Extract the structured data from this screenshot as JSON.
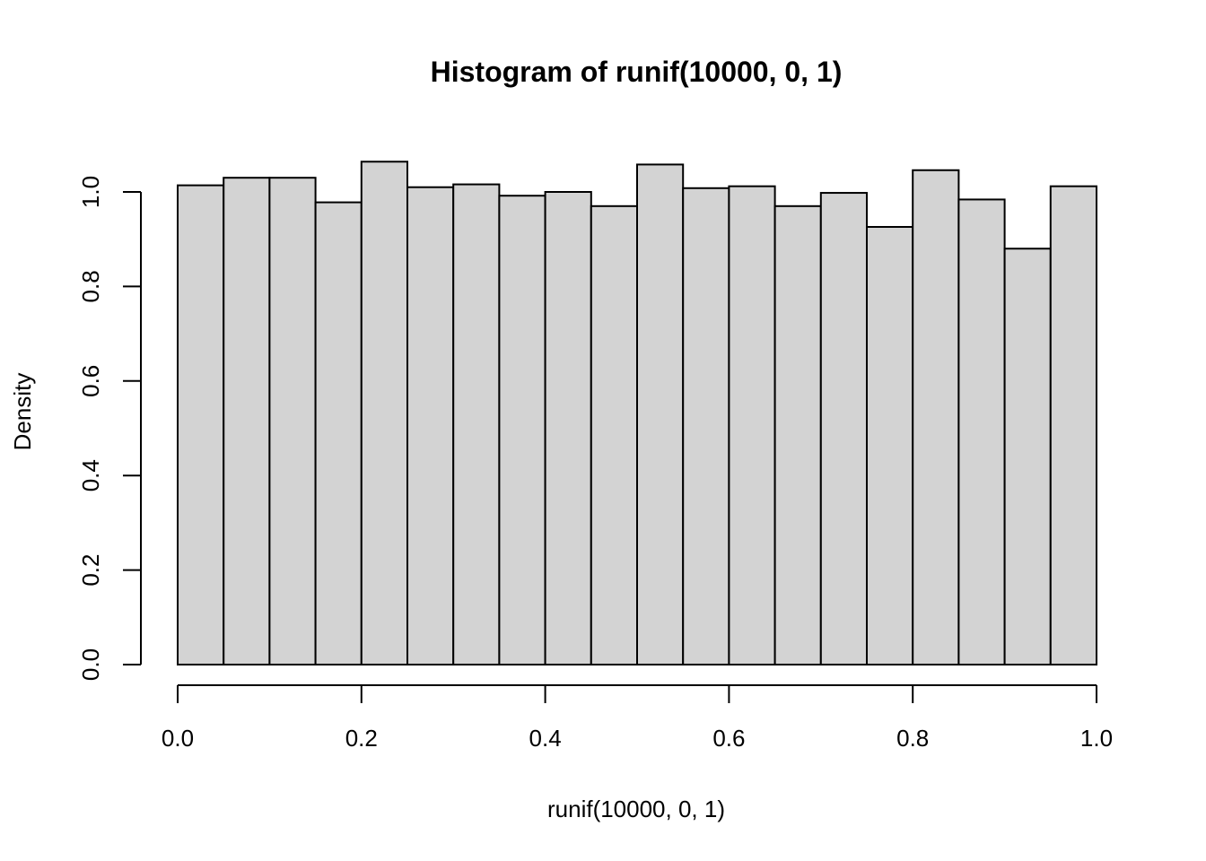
{
  "chart_data": {
    "type": "bar",
    "subtype": "histogram",
    "title": "Histogram of runif(10000, 0, 1)",
    "xlabel": "runif(10000, 0, 1)",
    "ylabel": "Density",
    "xlim": [
      0,
      1
    ],
    "ylim": [
      0,
      1.07
    ],
    "bin_width": 0.05,
    "bin_starts": [
      0.0,
      0.05,
      0.1,
      0.15,
      0.2,
      0.25,
      0.3,
      0.35,
      0.4,
      0.45,
      0.5,
      0.55,
      0.6,
      0.65,
      0.7,
      0.75,
      0.8,
      0.85,
      0.9,
      0.95
    ],
    "values": [
      1.014,
      1.03,
      1.03,
      0.978,
      1.064,
      1.01,
      1.016,
      0.992,
      1.0,
      0.97,
      1.058,
      1.008,
      1.012,
      0.97,
      0.998,
      0.926,
      1.046,
      0.984,
      0.88,
      1.012
    ],
    "xticks": [
      "0.0",
      "0.2",
      "0.4",
      "0.6",
      "0.8",
      "1.0"
    ],
    "yticks": [
      "0.0",
      "0.2",
      "0.4",
      "0.6",
      "0.8",
      "1.0"
    ],
    "bar_fill": "#d3d3d3",
    "bar_stroke": "#000000",
    "grid": false,
    "legend": "none"
  }
}
